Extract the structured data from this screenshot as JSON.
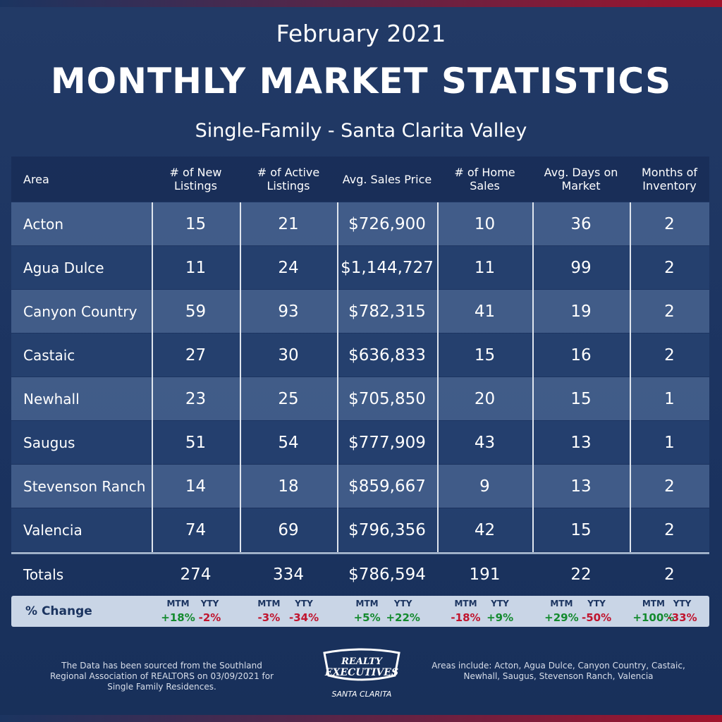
{
  "header": {
    "date": "February 2021",
    "title": "MONTHLY MARKET STATISTICS",
    "subtitle": "Single-Family - Santa Clarita Valley"
  },
  "table": {
    "columns": [
      "Area",
      "# of New Listings",
      "# of Active Listings",
      "Avg. Sales Price",
      "# of Home Sales",
      "Avg. Days on Market",
      "Months of Inventory"
    ],
    "rows": [
      [
        "Acton",
        "15",
        "21",
        "$726,900",
        "10",
        "36",
        "2"
      ],
      [
        "Agua Dulce",
        "11",
        "24",
        "$1,144,727",
        "11",
        "99",
        "2"
      ],
      [
        "Canyon Country",
        "59",
        "93",
        "$782,315",
        "41",
        "19",
        "2"
      ],
      [
        "Castaic",
        "27",
        "30",
        "$636,833",
        "15",
        "16",
        "2"
      ],
      [
        "Newhall",
        "23",
        "25",
        "$705,850",
        "20",
        "15",
        "1"
      ],
      [
        "Saugus",
        "51",
        "54",
        "$777,909",
        "43",
        "13",
        "1"
      ],
      [
        "Stevenson Ranch",
        "14",
        "18",
        "$859,667",
        "9",
        "13",
        "2"
      ],
      [
        "Valencia",
        "74",
        "69",
        "$796,356",
        "42",
        "15",
        "2"
      ]
    ],
    "totals": [
      "Totals",
      "274",
      "334",
      "$786,594",
      "191",
      "22",
      "2"
    ],
    "change": {
      "label": "% Change",
      "headers": [
        "MTM",
        "YTY"
      ],
      "values": [
        [
          "+18%",
          "-2%"
        ],
        [
          "-3%",
          "-34%"
        ],
        [
          "+5%",
          "+22%"
        ],
        [
          "-18%",
          "+9%"
        ],
        [
          "+29%",
          "-50%"
        ],
        [
          "+100%",
          "-33%"
        ]
      ]
    }
  },
  "footer": {
    "source": "The Data has been sourced from the Southland Regional Association of REALTORS on 03/09/2021 for Single Family Residences.",
    "areas": "Areas include: Acton, Agua Dulce, Canyon Country, Castaic, Newhall, Saugus, Stevenson Ranch, Valencia",
    "logo": {
      "line1": "REALTY",
      "line2": "EXECUTIVES",
      "line3": "SANTA CLARITA"
    }
  }
}
